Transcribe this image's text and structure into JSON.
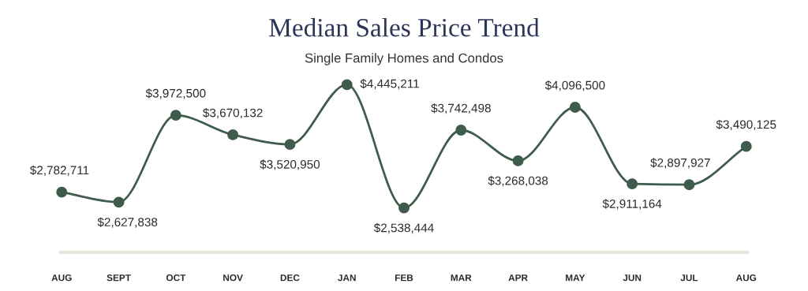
{
  "chart_data": {
    "type": "line",
    "title": "Median Sales Price Trend",
    "subtitle": "Single Family Homes and Condos",
    "categories": [
      "AUG",
      "SEPT",
      "OCT",
      "NOV",
      "DEC",
      "JAN",
      "FEB",
      "MAR",
      "APR",
      "MAY",
      "JUN",
      "JUL",
      "AUG"
    ],
    "series": [
      {
        "color": "#3e5b4b",
        "values": [
          2782711,
          2627838,
          3972500,
          3670132,
          3520950,
          4445211,
          2538444,
          3742498,
          3268038,
          4096500,
          2911164,
          2897927,
          3490125
        ],
        "value_labels": [
          "$2,782,711",
          "$2,627,838",
          "$3,972,500",
          "$3,670,132",
          "$3,520,950",
          "$4,445,211",
          "$2,538,444",
          "$3,742,498",
          "$3,268,038",
          "$4,096,500",
          "$2,911,164",
          "$2,897,927",
          "$3,490,125"
        ]
      }
    ],
    "marker": "circle",
    "grid": false,
    "legend": false
  }
}
